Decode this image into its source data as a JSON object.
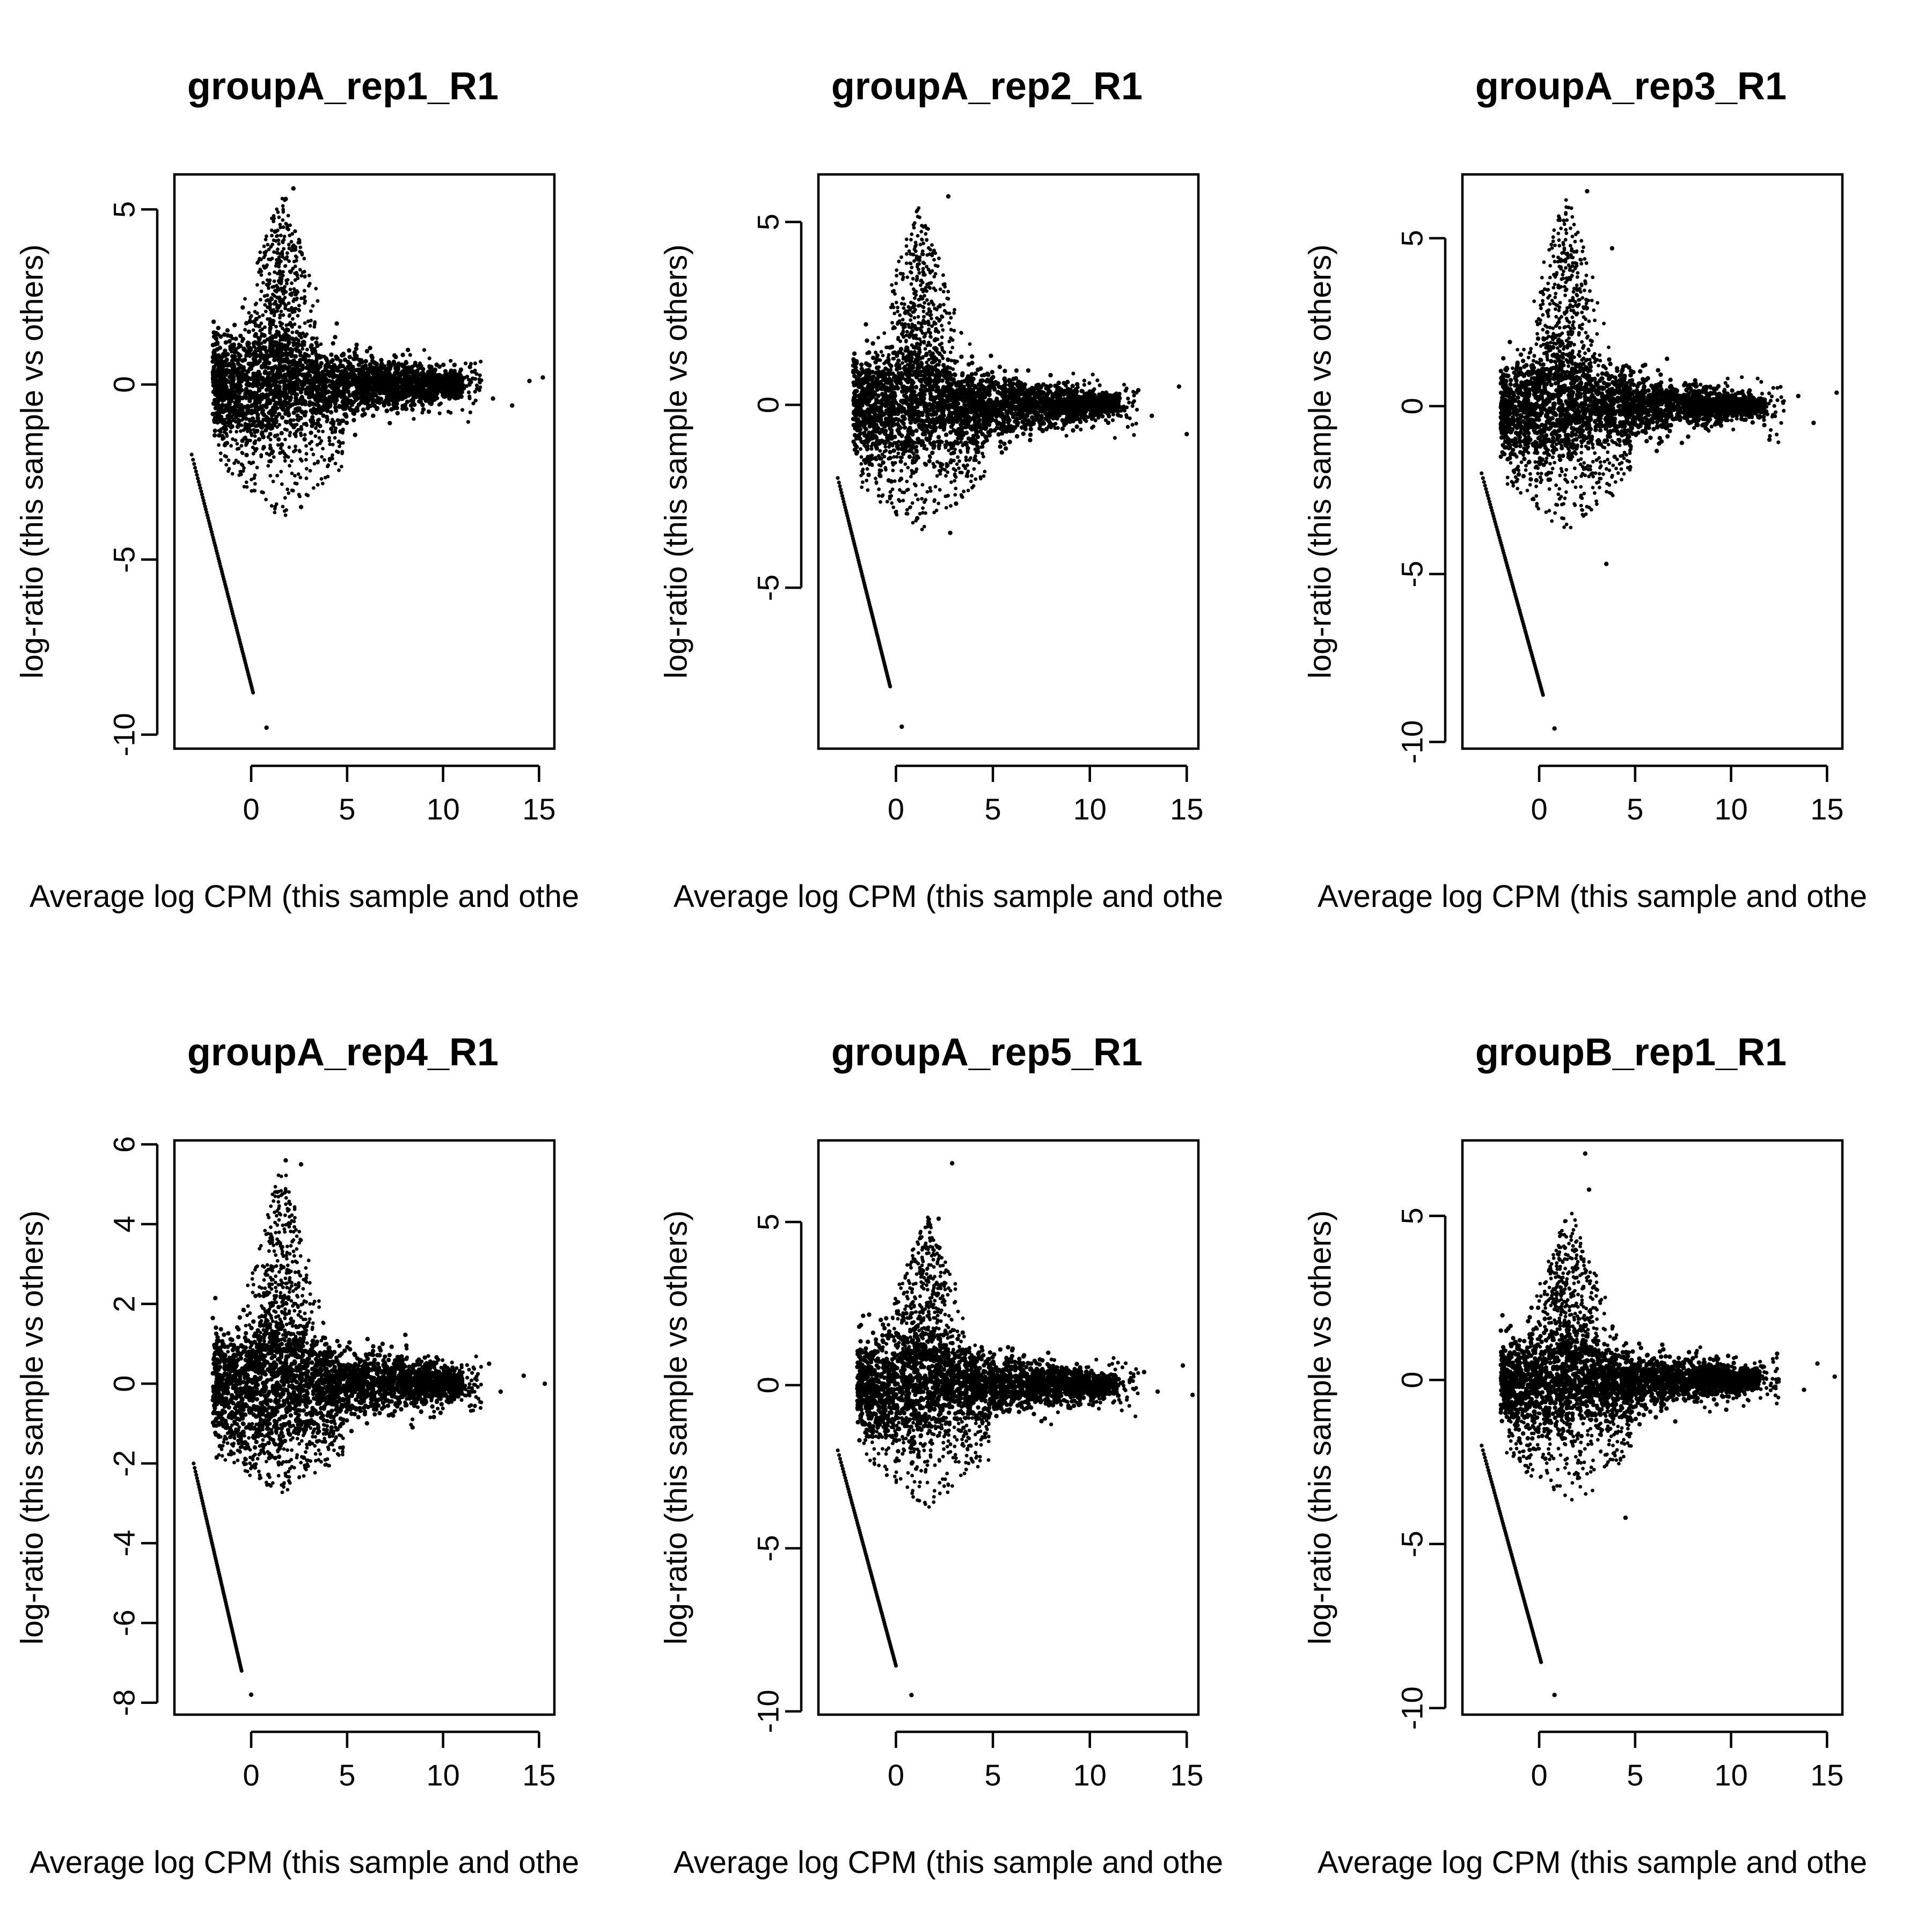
{
  "figure": {
    "background": "#ffffff",
    "point_color": "#000000"
  },
  "chart_data": [
    {
      "type": "scatter",
      "title": "groupA_rep1_R1",
      "xlabel": "Average log CPM (this sample and othe",
      "ylabel": "log-ratio (this sample vs others)",
      "xlim": [
        -4.0,
        15.8
      ],
      "ylim": [
        -10.4,
        6.0
      ],
      "xticks": [
        0,
        5,
        10,
        15
      ],
      "yticks": [
        -10,
        -5,
        0,
        5
      ],
      "ytick_labels": [
        "-10",
        "-5",
        "0",
        "5"
      ],
      "cloud": {
        "x_min": -2.0,
        "x_peak": 1.6,
        "x_max": 11.0,
        "x_tail": 15.5,
        "upper_max": 5.6,
        "lower_min": -3.9,
        "upper_decay": 3.0,
        "lower_decay": 2.4
      },
      "zero_line": {
        "x_start": -3.1,
        "y_start": -2.0,
        "x_end": 0.1,
        "y_end": -8.8
      },
      "points": [
        [
          0.8,
          -9.8
        ],
        [
          15.2,
          0.2
        ],
        [
          14.5,
          0.1
        ],
        [
          13.6,
          -0.6
        ],
        [
          12.6,
          -0.4
        ],
        [
          2.2,
          5.6
        ],
        [
          1.8,
          5.3
        ],
        [
          2.6,
          -3.5
        ],
        [
          11.4,
          0.5
        ]
      ]
    },
    {
      "type": "scatter",
      "title": "groupA_rep2_R1",
      "xlabel": "Average log CPM (this sample and othe",
      "ylabel": "log-ratio (this sample vs others)",
      "xlim": [
        -4.0,
        15.6
      ],
      "ylim": [
        -9.4,
        6.3
      ],
      "xticks": [
        0,
        5,
        10,
        15
      ],
      "yticks": [
        -5,
        0,
        5
      ],
      "ytick_labels": [
        "-5",
        "0",
        "5"
      ],
      "cloud": {
        "x_min": -2.2,
        "x_peak": 1.2,
        "x_max": 11.5,
        "x_tail": 15.0,
        "upper_max": 5.5,
        "lower_min": -3.5,
        "upper_decay": 3.2,
        "lower_decay": 2.4
      },
      "zero_line": {
        "x_start": -3.0,
        "y_start": -2.0,
        "x_end": -0.3,
        "y_end": -7.7
      },
      "points": [
        [
          0.3,
          -8.8
        ],
        [
          15.0,
          -0.8
        ],
        [
          14.6,
          0.5
        ],
        [
          13.2,
          -0.3
        ],
        [
          12.5,
          0.4
        ],
        [
          2.7,
          5.7
        ],
        [
          2.8,
          -3.5
        ],
        [
          1.1,
          -3.1
        ],
        [
          3.1,
          -2.7
        ]
      ]
    },
    {
      "type": "scatter",
      "title": "groupA_rep3_R1",
      "xlabel": "Average log CPM (this sample and othe",
      "ylabel": "log-ratio (this sample vs others)",
      "xlim": [
        -4.0,
        15.8
      ],
      "ylim": [
        -10.2,
        6.9
      ],
      "xticks": [
        0,
        5,
        10,
        15
      ],
      "yticks": [
        -10,
        -5,
        0,
        5
      ],
      "ytick_labels": [
        "-10",
        "-5",
        "0",
        "5"
      ],
      "cloud": {
        "x_min": -2.0,
        "x_peak": 1.4,
        "x_max": 11.8,
        "x_tail": 15.3,
        "upper_max": 6.4,
        "lower_min": -3.8,
        "upper_decay": 3.1,
        "lower_decay": 2.6
      },
      "zero_line": {
        "x_start": -3.0,
        "y_start": -2.0,
        "x_end": 0.2,
        "y_end": -8.6
      },
      "points": [
        [
          0.8,
          -9.6
        ],
        [
          15.5,
          0.4
        ],
        [
          14.3,
          -0.5
        ],
        [
          13.5,
          0.3
        ],
        [
          12.0,
          -1.0
        ],
        [
          2.5,
          6.4
        ],
        [
          3.5,
          -4.7
        ],
        [
          3.8,
          4.7
        ]
      ]
    },
    {
      "type": "scatter",
      "title": "groupA_rep4_R1",
      "xlabel": "Average log CPM (this sample and othe",
      "ylabel": "log-ratio (this sample vs others)",
      "xlim": [
        -4.0,
        15.8
      ],
      "ylim": [
        -8.3,
        6.1
      ],
      "xticks": [
        0,
        5,
        10,
        15
      ],
      "yticks": [
        -8,
        -6,
        -4,
        -2,
        0,
        2,
        4,
        6
      ],
      "ytick_labels": [
        "-8",
        "-6",
        "-4",
        "-2",
        "0",
        "2",
        "4",
        "6"
      ],
      "cloud": {
        "x_min": -2.0,
        "x_peak": 1.6,
        "x_max": 11.0,
        "x_tail": 15.3,
        "upper_max": 5.6,
        "lower_min": -2.8,
        "upper_decay": 2.8,
        "lower_decay": 1.8
      },
      "zero_line": {
        "x_start": -3.0,
        "y_start": -2.0,
        "x_end": -0.5,
        "y_end": -7.2
      },
      "points": [
        [
          0.0,
          -7.8
        ],
        [
          15.3,
          0.0
        ],
        [
          14.2,
          0.2
        ],
        [
          13.0,
          -0.2
        ],
        [
          12.4,
          0.5
        ],
        [
          1.8,
          5.6
        ],
        [
          2.6,
          5.5
        ],
        [
          11.5,
          -0.2
        ]
      ]
    },
    {
      "type": "scatter",
      "title": "groupA_rep5_R1",
      "xlabel": "Average log CPM (this sample and othe",
      "ylabel": "log-ratio (this sample vs others)",
      "xlim": [
        -4.0,
        15.6
      ],
      "ylim": [
        -10.1,
        7.5
      ],
      "xticks": [
        0,
        5,
        10,
        15
      ],
      "yticks": [
        -10,
        -5,
        0,
        5
      ],
      "ytick_labels": [
        "-10",
        "-5",
        "0",
        "5"
      ],
      "cloud": {
        "x_min": -2.0,
        "x_peak": 1.6,
        "x_max": 11.5,
        "x_tail": 15.3,
        "upper_max": 5.3,
        "lower_min": -3.8,
        "upper_decay": 3.0,
        "lower_decay": 2.6
      },
      "zero_line": {
        "x_start": -3.0,
        "y_start": -2.0,
        "x_end": 0.0,
        "y_end": -8.6
      },
      "points": [
        [
          0.8,
          -9.5
        ],
        [
          15.3,
          -0.3
        ],
        [
          14.8,
          0.6
        ],
        [
          13.5,
          -0.2
        ],
        [
          12.8,
          0.4
        ],
        [
          2.9,
          6.8
        ],
        [
          2.2,
          5.1
        ]
      ]
    },
    {
      "type": "scatter",
      "title": "groupB_rep1_R1",
      "xlabel": "Average log CPM (this sample and othe",
      "ylabel": "log-ratio (this sample vs others)",
      "xlim": [
        -4.0,
        15.8
      ],
      "ylim": [
        -10.2,
        7.3
      ],
      "xticks": [
        0,
        5,
        10,
        15
      ],
      "yticks": [
        -10,
        -5,
        0,
        5
      ],
      "ytick_labels": [
        "-10",
        "-5",
        "0",
        "5"
      ],
      "cloud": {
        "x_min": -2.0,
        "x_peak": 1.6,
        "x_max": 11.5,
        "x_tail": 15.4,
        "upper_max": 5.3,
        "lower_min": -4.0,
        "upper_decay": 3.0,
        "lower_decay": 2.6
      },
      "zero_line": {
        "x_start": -3.0,
        "y_start": -2.0,
        "x_end": 0.1,
        "y_end": -8.6
      },
      "points": [
        [
          0.8,
          -9.6
        ],
        [
          15.4,
          0.1
        ],
        [
          14.5,
          0.5
        ],
        [
          13.8,
          -0.3
        ],
        [
          12.4,
          0.8
        ],
        [
          2.4,
          6.9
        ],
        [
          2.6,
          5.8
        ],
        [
          4.5,
          -4.2
        ]
      ]
    }
  ]
}
